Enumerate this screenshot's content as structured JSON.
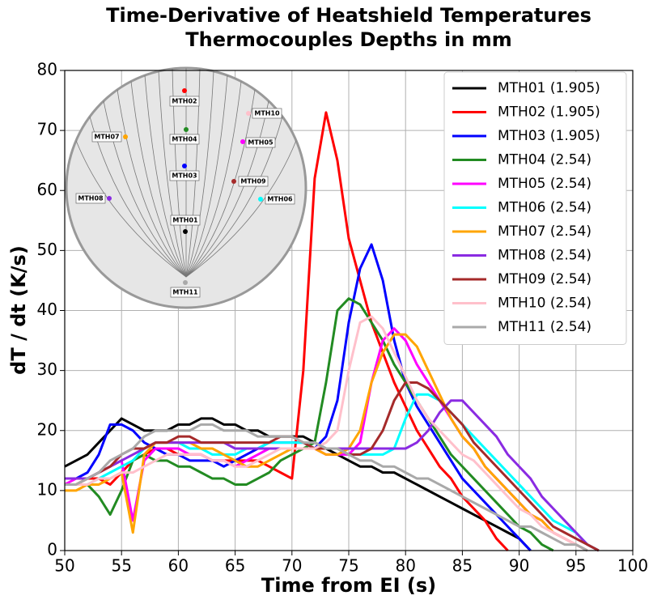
{
  "chart_data": {
    "type": "line",
    "title": [
      "Time-Derivative of Heatshield Temperatures",
      "Thermocouples Depths in mm"
    ],
    "xlabel": "Time from EI (s)",
    "ylabel": "dT / dt (K/s)",
    "x": [
      50,
      51,
      52,
      53,
      54,
      55,
      56,
      57,
      58,
      59,
      60,
      61,
      62,
      63,
      64,
      65,
      66,
      67,
      68,
      69,
      70,
      71,
      72,
      73,
      74,
      75,
      76,
      77,
      78,
      79,
      80,
      81,
      82,
      83,
      84,
      85,
      86,
      87,
      88,
      89,
      90,
      91,
      92,
      93,
      94,
      95,
      96,
      97
    ],
    "xlim": [
      50,
      100
    ],
    "ylim": [
      0,
      80
    ],
    "xticks": [
      50,
      55,
      60,
      65,
      70,
      75,
      80,
      85,
      90,
      95,
      100
    ],
    "yticks": [
      0,
      10,
      20,
      30,
      40,
      50,
      60,
      70,
      80
    ],
    "grid": true,
    "legend": "upper right",
    "series": [
      {
        "name": "MTH01 (1.905)",
        "color": "#000000",
        "values": [
          14,
          15,
          16,
          18,
          20,
          22,
          21,
          20,
          20,
          20,
          21,
          21,
          22,
          22,
          21,
          21,
          20,
          20,
          19,
          19,
          19,
          19,
          18,
          17,
          16,
          15,
          14,
          14,
          13,
          13,
          12,
          11,
          10,
          9,
          8,
          7,
          6,
          5,
          4,
          3,
          2,
          0,
          null,
          null,
          null,
          null,
          null,
          null
        ]
      },
      {
        "name": "MTH02 (1.905)",
        "color": "#ff0000",
        "values": [
          11,
          11,
          12,
          12,
          11,
          13,
          15,
          16,
          17,
          17,
          16,
          16,
          16,
          15,
          15,
          15,
          15,
          15,
          14,
          13,
          12,
          30,
          62,
          73,
          65,
          52,
          45,
          38,
          33,
          28,
          24,
          20,
          17,
          14,
          12,
          9,
          7,
          5,
          2,
          0,
          null,
          null,
          null,
          null,
          null,
          null,
          null,
          null
        ]
      },
      {
        "name": "MTH03 (1.905)",
        "color": "#0000ff",
        "values": [
          12,
          12,
          13,
          16,
          21,
          21,
          20,
          18,
          17,
          16,
          16,
          15,
          15,
          15,
          14,
          15,
          16,
          17,
          18,
          18,
          18,
          18,
          17,
          19,
          25,
          38,
          47,
          51,
          45,
          35,
          28,
          24,
          21,
          18,
          15,
          12,
          10,
          8,
          6,
          4,
          2,
          0,
          null,
          null,
          null,
          null,
          null,
          null
        ]
      },
      {
        "name": "MTH04 (2.54)",
        "color": "#228b22",
        "values": [
          11,
          11,
          11,
          9,
          6,
          10,
          15,
          16,
          15,
          15,
          14,
          14,
          13,
          12,
          12,
          11,
          11,
          12,
          13,
          15,
          16,
          17,
          18,
          28,
          40,
          42,
          41,
          38,
          35,
          31,
          28,
          25,
          22,
          19,
          16,
          14,
          12,
          10,
          8,
          6,
          4,
          3,
          1,
          0,
          null,
          null,
          null,
          null
        ]
      },
      {
        "name": "MTH05 (2.54)",
        "color": "#ff00ff",
        "values": [
          11,
          12,
          12,
          13,
          14,
          15,
          5,
          15,
          17,
          17,
          17,
          16,
          16,
          15,
          15,
          14,
          15,
          16,
          17,
          17,
          17,
          17,
          17,
          16,
          16,
          16,
          18,
          28,
          35,
          37,
          35,
          31,
          28,
          25,
          22,
          19,
          17,
          14,
          12,
          10,
          8,
          6,
          5,
          3,
          2,
          1,
          0,
          null
        ]
      },
      {
        "name": "MTH06 (2.54)",
        "color": "#00ffff",
        "values": [
          11,
          11,
          11,
          12,
          13,
          14,
          15,
          17,
          18,
          18,
          18,
          17,
          17,
          16,
          16,
          16,
          17,
          17,
          18,
          18,
          18,
          18,
          17,
          17,
          17,
          16,
          16,
          16,
          16,
          17,
          22,
          26,
          26,
          25,
          23,
          21,
          19,
          17,
          15,
          13,
          11,
          9,
          7,
          5,
          4,
          3,
          1,
          0
        ]
      },
      {
        "name": "MTH07 (2.54)",
        "color": "#ffa500",
        "values": [
          10,
          10,
          11,
          11,
          12,
          13,
          3,
          16,
          18,
          18,
          18,
          18,
          17,
          17,
          16,
          15,
          14,
          14,
          15,
          16,
          17,
          17,
          17,
          16,
          16,
          17,
          20,
          28,
          33,
          36,
          36,
          34,
          30,
          26,
          22,
          19,
          17,
          14,
          12,
          10,
          8,
          6,
          5,
          3,
          2,
          1,
          0,
          null
        ]
      },
      {
        "name": "MTH08 (2.54)",
        "color": "#8a2be2",
        "values": [
          12,
          12,
          12,
          13,
          14,
          15,
          16,
          17,
          18,
          18,
          18,
          18,
          18,
          18,
          18,
          17,
          17,
          17,
          17,
          17,
          17,
          17,
          17,
          17,
          17,
          17,
          17,
          17,
          17,
          17,
          17,
          18,
          20,
          23,
          25,
          25,
          23,
          21,
          19,
          16,
          14,
          12,
          9,
          7,
          5,
          3,
          1,
          0
        ]
      },
      {
        "name": "MTH09 (2.54)",
        "color": "#a52a2a",
        "values": [
          11,
          11,
          12,
          13,
          14,
          16,
          17,
          17,
          18,
          18,
          19,
          19,
          18,
          18,
          18,
          18,
          18,
          18,
          18,
          19,
          19,
          18,
          17,
          17,
          17,
          16,
          16,
          17,
          20,
          25,
          28,
          28,
          27,
          25,
          23,
          21,
          18,
          16,
          14,
          12,
          10,
          8,
          6,
          4,
          3,
          2,
          1,
          0
        ]
      },
      {
        "name": "MTH10 (2.54)",
        "color": "#ffc0cb",
        "values": [
          11,
          11,
          11,
          12,
          12,
          13,
          13,
          14,
          15,
          16,
          16,
          16,
          16,
          15,
          15,
          14,
          14,
          15,
          16,
          17,
          17,
          17,
          17,
          18,
          20,
          30,
          38,
          39,
          37,
          33,
          29,
          25,
          22,
          20,
          18,
          16,
          15,
          13,
          11,
          9,
          7,
          6,
          4,
          3,
          2,
          1,
          0,
          null
        ]
      },
      {
        "name": "MTH11 (2.54)",
        "color": "#a9a9a9",
        "values": [
          11,
          11,
          12,
          13,
          15,
          16,
          17,
          19,
          20,
          20,
          20,
          20,
          21,
          21,
          20,
          20,
          20,
          19,
          19,
          19,
          19,
          18,
          18,
          17,
          17,
          16,
          15,
          15,
          14,
          14,
          13,
          12,
          12,
          11,
          10,
          9,
          8,
          7,
          6,
          5,
          4,
          4,
          3,
          2,
          1,
          1,
          0,
          null
        ]
      }
    ],
    "inset_labels": [
      "MTH01",
      "MTH02",
      "MTH03",
      "MTH04",
      "MTH05",
      "MTH06",
      "MTH07",
      "MTH08",
      "MTH09",
      "MTH10",
      "MTH11"
    ]
  }
}
